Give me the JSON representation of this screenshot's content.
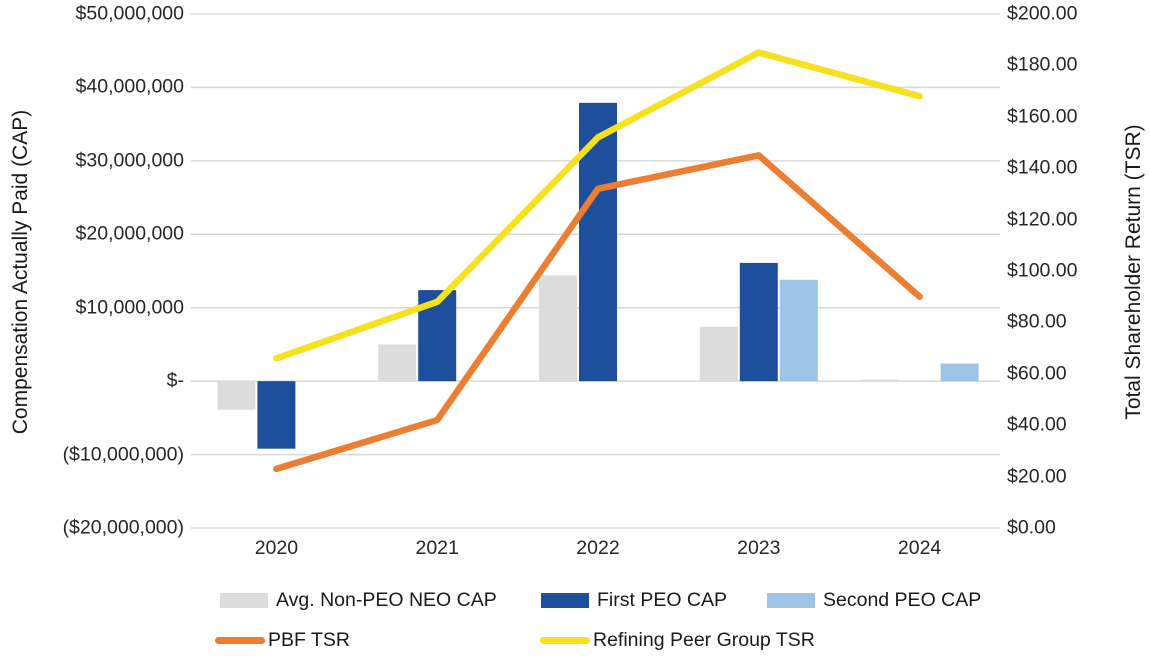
{
  "chart_data": {
    "type": "bar",
    "subtype": "combo-bar-line-dual-axis",
    "categories": [
      "2020",
      "2021",
      "2022",
      "2023",
      "2024"
    ],
    "bar_series": [
      {
        "name": "Avg. Non-PEO NEO CAP",
        "color": "#dcdcdc",
        "axis": "left",
        "values": [
          -3900000,
          5000000,
          14400000,
          7400000,
          200000
        ]
      },
      {
        "name": "First PEO CAP",
        "color": "#1d4f9c",
        "axis": "left",
        "values": [
          -9200000,
          12400000,
          37900000,
          16100000,
          null
        ]
      },
      {
        "name": "Second PEO CAP",
        "color": "#9dc3e6",
        "axis": "left",
        "values": [
          null,
          null,
          null,
          13800000,
          2400000
        ]
      }
    ],
    "line_series": [
      {
        "name": "PBF TSR",
        "color": "#ed7d31",
        "axis": "right",
        "values": [
          23,
          42,
          132,
          145,
          90
        ]
      },
      {
        "name": "Refining Peer Group TSR",
        "color": "#f6e11e",
        "axis": "right",
        "values": [
          66,
          88,
          152,
          185,
          168
        ]
      }
    ],
    "left_axis": {
      "title": "Compensation Actually Paid (CAP)",
      "max": 50000000,
      "min": -20000000,
      "step": 10000000,
      "tick_labels": [
        "$50,000,000",
        "$40,000,000",
        "$30,000,000",
        "$20,000,000",
        "$10,000,000",
        "$-",
        "($10,000,000)",
        "($20,000,000)"
      ]
    },
    "right_axis": {
      "title": "Total Shareholder Return (TSR)",
      "max": 200,
      "min": 0,
      "step": 20,
      "tick_labels": [
        "$200.00",
        "$180.00",
        "$160.00",
        "$140.00",
        "$120.00",
        "$100.00",
        "$80.00",
        "$60.00",
        "$40.00",
        "$20.00",
        "$0.00"
      ]
    },
    "grid": true,
    "gridline_color": "#d9d9d9",
    "legend_position": "bottom"
  }
}
